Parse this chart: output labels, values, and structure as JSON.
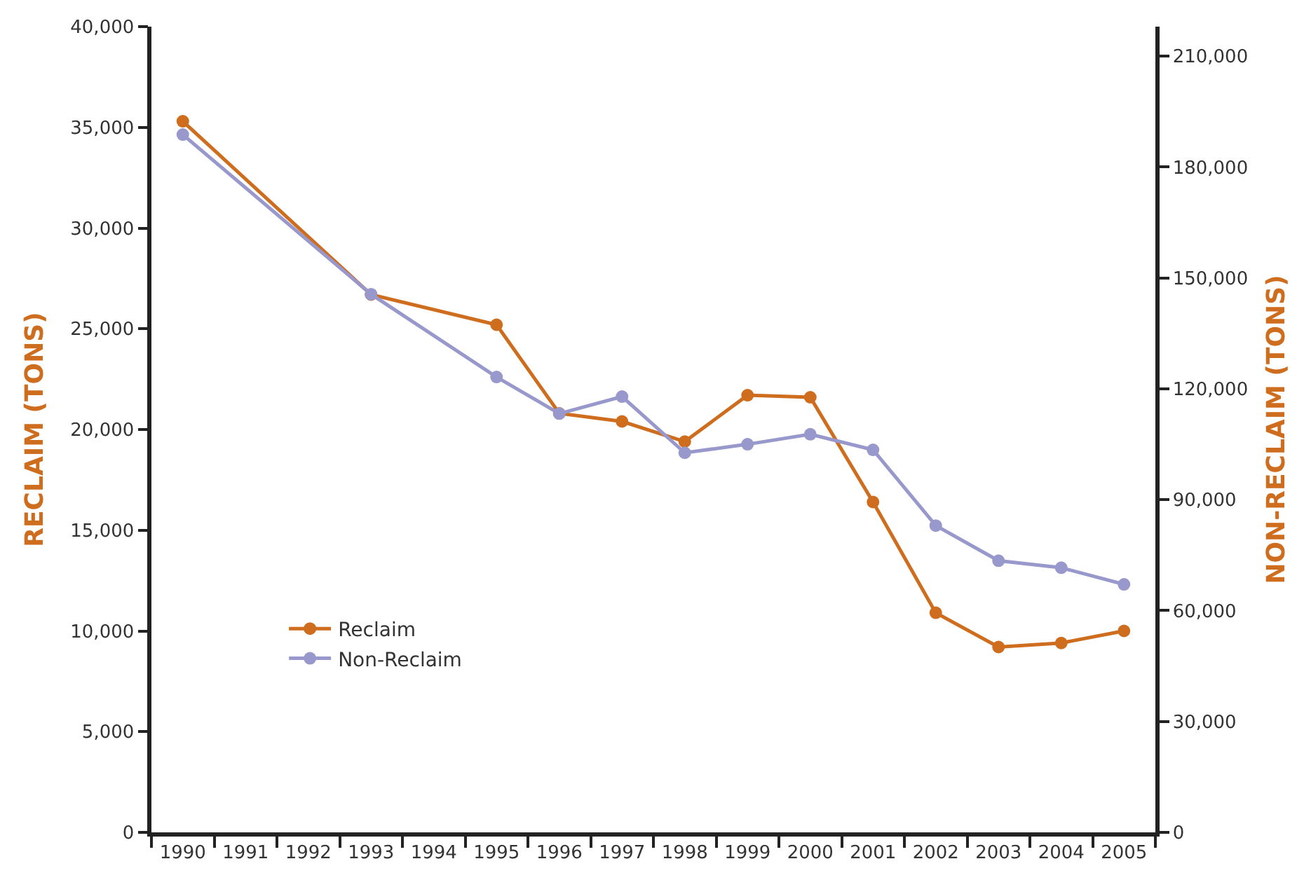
{
  "chart_data": {
    "type": "line",
    "categories": [
      "1990",
      "1991",
      "1992",
      "1993",
      "1994",
      "1995",
      "1996",
      "1997",
      "1998",
      "1999",
      "2000",
      "2001",
      "2002",
      "2003",
      "2004",
      "2005"
    ],
    "series": [
      {
        "name": "Reclaim",
        "color": "#cf6d1f",
        "values": [
          35300,
          null,
          null,
          26700,
          null,
          25200,
          20800,
          20400,
          19400,
          21700,
          21600,
          16400,
          10900,
          9200,
          9400,
          10000
        ]
      },
      {
        "name": "Non-Reclaim",
        "color": "#9898cc",
        "axis": "y2",
        "values": [
          188800,
          null,
          null,
          145600,
          null,
          123200,
          113300,
          117900,
          102700,
          105000,
          107700,
          103500,
          83000,
          73500,
          71600,
          67100
        ]
      }
    ],
    "ylabel": "RECLAIM (TONS)",
    "y2label": "NON-RECLAIM (TONS)",
    "ylim": [
      0,
      40000
    ],
    "yticks": [
      {
        "value": 0,
        "label": "0"
      },
      {
        "value": 5000,
        "label": "5,000"
      },
      {
        "value": 10000,
        "label": "10,000"
      },
      {
        "value": 15000,
        "label": "15,000"
      },
      {
        "value": 20000,
        "label": "20,000"
      },
      {
        "value": 25000,
        "label": "25,000"
      },
      {
        "value": 30000,
        "label": "30,000"
      },
      {
        "value": 35000,
        "label": "35,000"
      },
      {
        "value": 40000,
        "label": "40,000"
      }
    ],
    "y2lim": [
      0,
      218000
    ],
    "y2ticks": [
      {
        "value": 0,
        "label": "0"
      },
      {
        "value": 30000,
        "label": "30,000"
      },
      {
        "value": 60000,
        "label": "60,000"
      },
      {
        "value": 90000,
        "label": "90,000"
      },
      {
        "value": 120000,
        "label": "120,000"
      },
      {
        "value": 150000,
        "label": "150,000"
      },
      {
        "value": 180000,
        "label": "180,000"
      },
      {
        "value": 210000,
        "label": "210,000"
      }
    ],
    "legend": "bottom left",
    "marker": "circle",
    "line_style": "solid"
  }
}
